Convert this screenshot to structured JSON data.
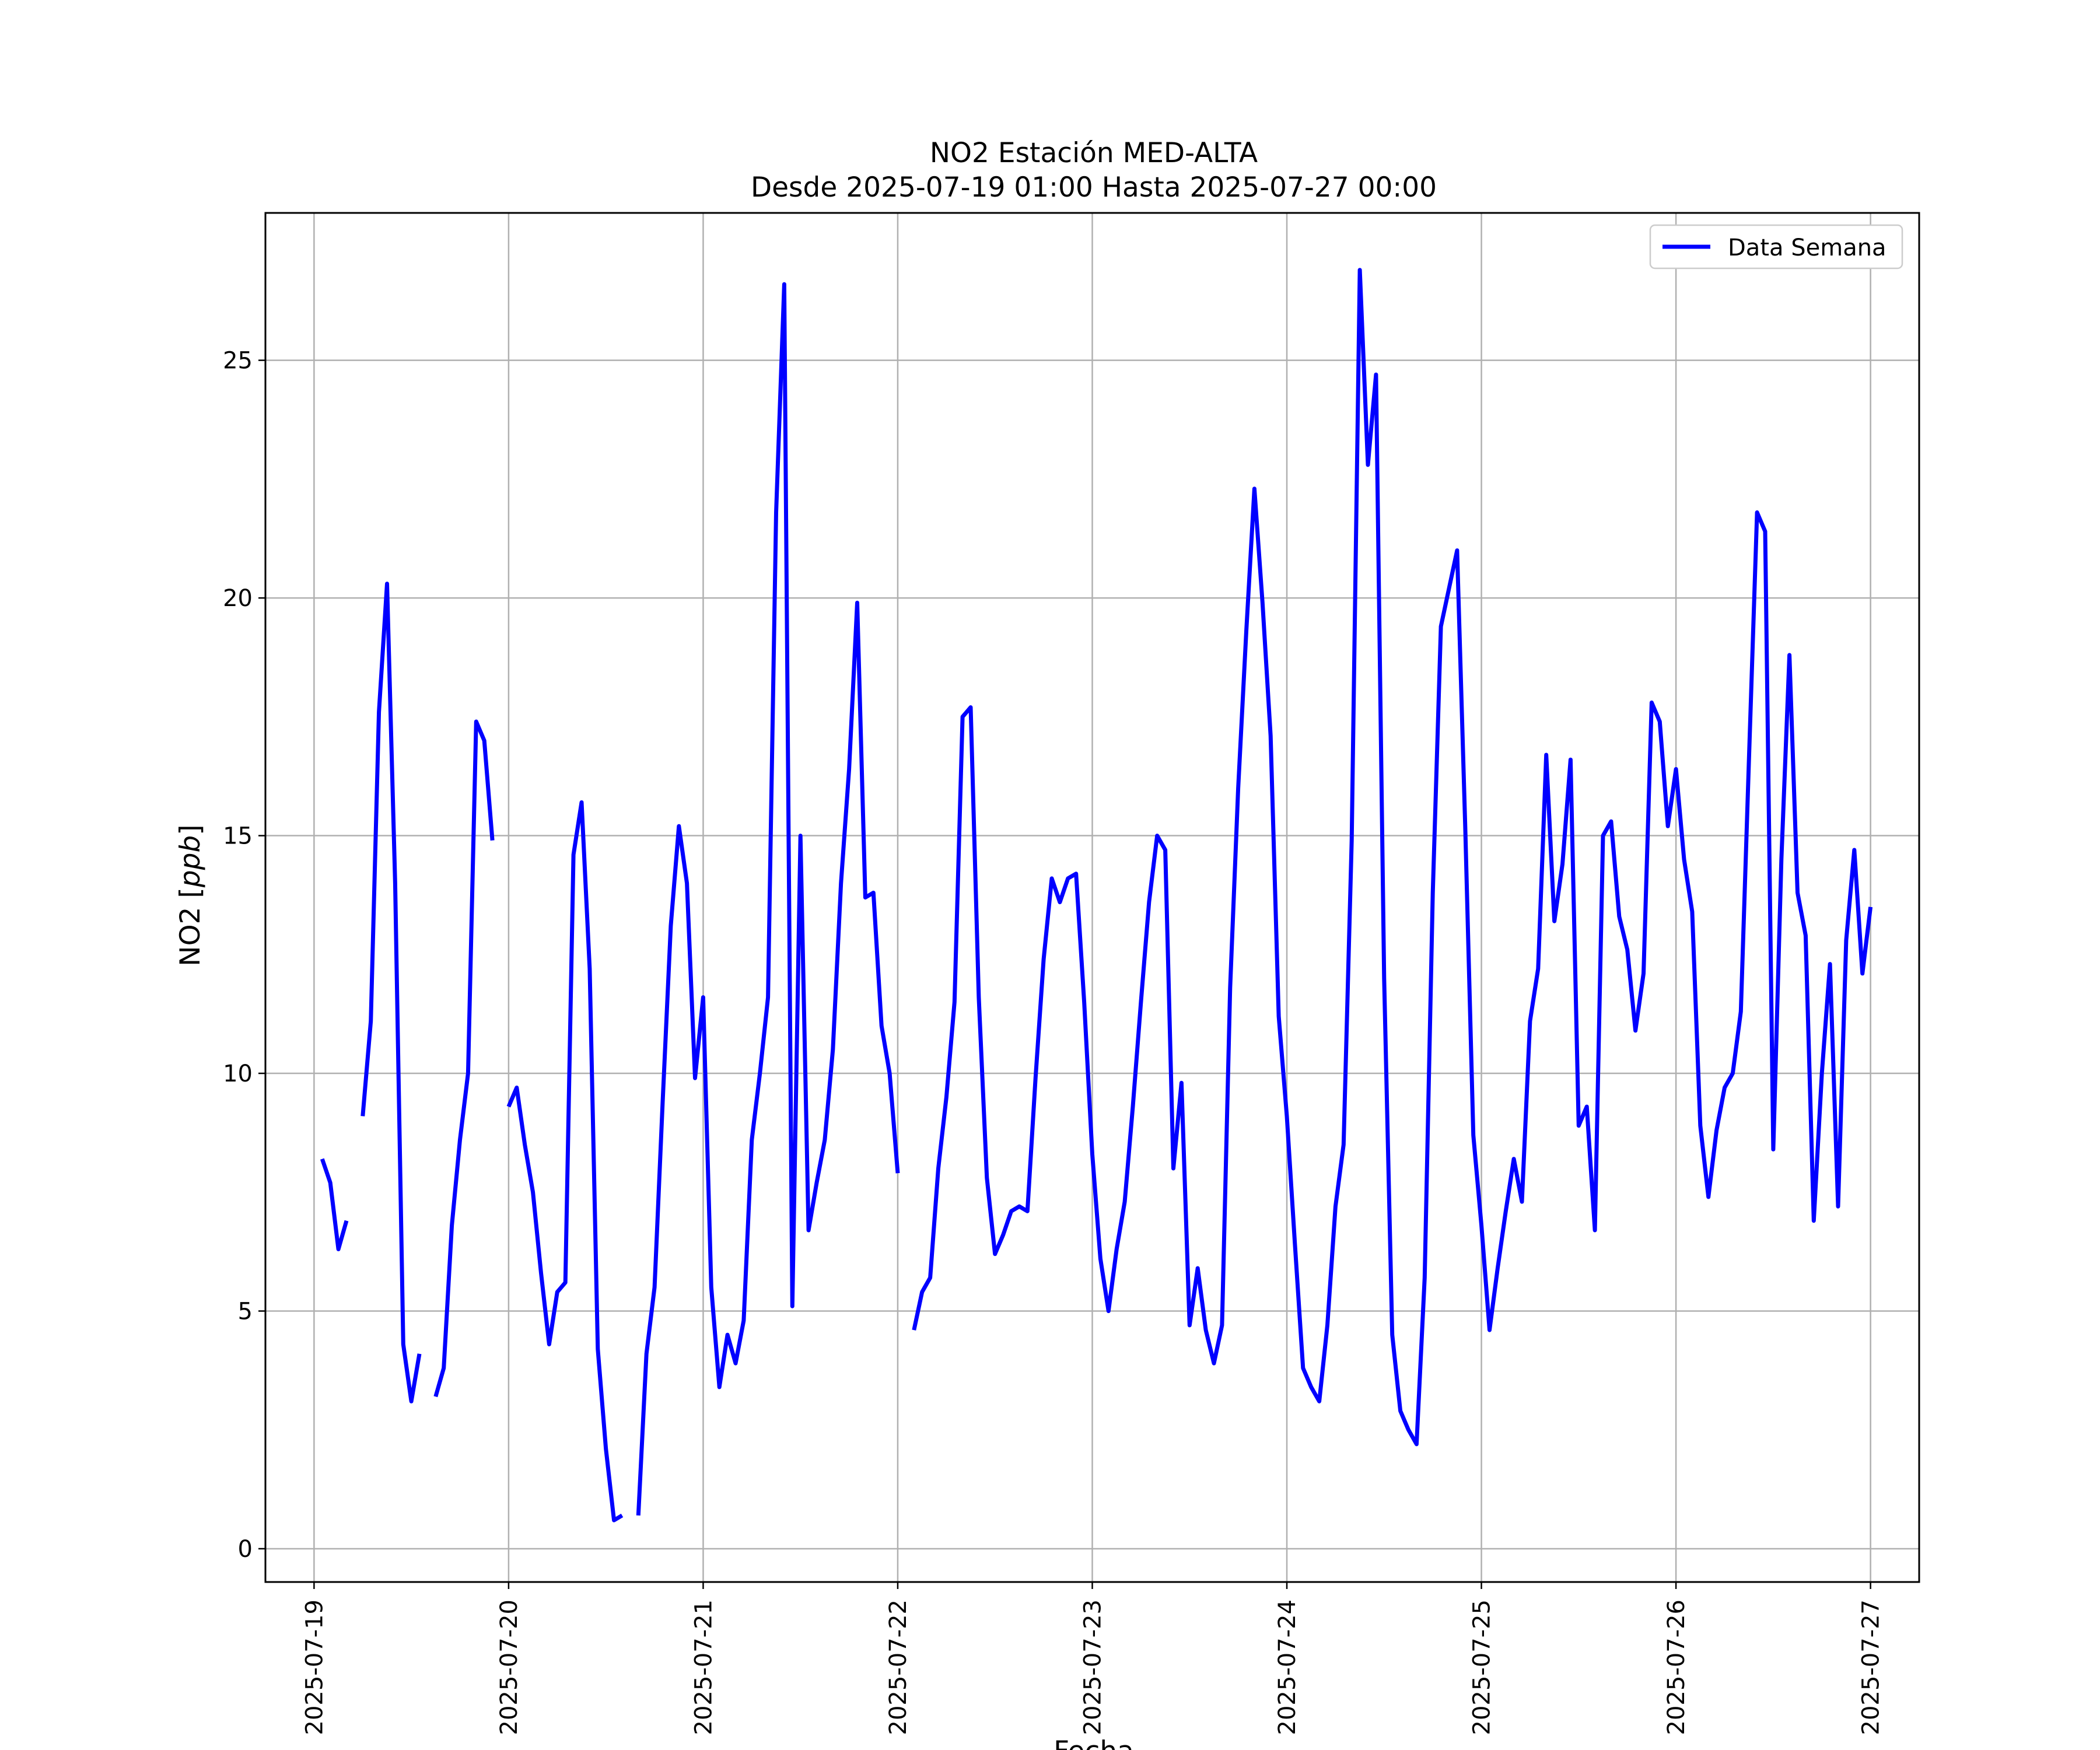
{
  "chart_data": {
    "type": "line",
    "title": "NO2 Estación MED-ALTA",
    "subtitle": "Desde 2025-07-19 01:00 Hasta 2025-07-27 00:00",
    "xlabel": "Fecha",
    "ylabel": "NO2 [ppb]",
    "ylabel_prefix": "NO2 [",
    "ylabel_unit": "ppb",
    "ylabel_suffix": "]",
    "xlim": [
      "2025-07-18 18:00",
      "2025-07-27 06:00"
    ],
    "ylim": [
      -0.7,
      28.1
    ],
    "yticks": [
      0,
      5,
      10,
      15,
      20,
      25
    ],
    "xticks": [
      "2025-07-19",
      "2025-07-20",
      "2025-07-21",
      "2025-07-22",
      "2025-07-23",
      "2025-07-24",
      "2025-07-25",
      "2025-07-26",
      "2025-07-27"
    ],
    "grid": true,
    "legend_position": "top-right",
    "color": "#0000ff",
    "series": [
      {
        "name": "Data Semana",
        "color": "#0000ff",
        "start": "2025-07-19 01:00",
        "interval_hours": 1,
        "values": [
          8.2,
          7.7,
          6.3,
          6.9,
          null,
          9.1,
          11.1,
          17.6,
          20.3,
          14.0,
          4.3,
          3.1,
          4.1,
          null,
          3.2,
          3.8,
          6.8,
          8.6,
          10.0,
          17.4,
          17.0,
          14.9,
          null,
          9.3,
          9.7,
          8.5,
          7.5,
          5.8,
          4.3,
          5.4,
          5.6,
          14.6,
          15.7,
          12.2,
          4.2,
          2.1,
          0.6,
          0.7,
          null,
          0.7,
          4.1,
          5.5,
          9.4,
          13.1,
          15.2,
          14.0,
          9.9,
          11.6,
          5.5,
          3.4,
          4.5,
          3.9,
          4.8,
          8.6,
          10.0,
          11.6,
          21.8,
          26.6,
          5.1,
          15.0,
          6.7,
          7.7,
          8.6,
          10.5,
          14.0,
          16.4,
          19.9,
          13.7,
          13.8,
          11.0,
          10.0,
          7.9,
          null,
          4.6,
          5.4,
          5.7,
          8.0,
          9.5,
          11.5,
          17.5,
          17.7,
          11.6,
          7.8,
          6.2,
          6.6,
          7.1,
          7.2,
          7.1,
          9.9,
          12.4,
          14.1,
          13.6,
          14.1,
          14.2,
          11.5,
          8.3,
          6.1,
          5.0,
          6.3,
          7.3,
          9.3,
          11.5,
          13.6,
          15.0,
          14.7,
          8.0,
          9.8,
          4.7,
          5.9,
          4.6,
          3.9,
          4.7,
          11.8,
          16.0,
          19.3,
          22.3,
          19.9,
          17.1,
          11.2,
          9.1,
          6.4,
          3.8,
          3.4,
          3.1,
          4.7,
          7.2,
          8.5,
          14.9,
          26.9,
          22.8,
          24.7,
          12.0,
          4.5,
          2.9,
          2.5,
          2.2,
          5.7,
          13.8,
          19.4,
          20.2,
          21.0,
          15.2,
          8.7,
          6.8,
          4.6,
          5.9,
          7.1,
          8.2,
          7.3,
          11.1,
          12.2,
          16.7,
          13.2,
          14.4,
          16.6,
          8.9,
          9.3,
          6.7,
          15.0,
          15.3,
          13.3,
          12.6,
          10.9,
          12.1,
          17.8,
          17.4,
          15.2,
          16.4,
          14.5,
          13.4,
          8.9,
          7.4,
          8.8,
          9.7,
          10.0,
          11.3,
          16.6,
          21.8,
          21.4,
          8.4,
          14.5,
          18.8,
          13.8,
          12.9,
          6.9,
          10.0,
          12.3,
          7.2,
          12.8,
          14.7,
          12.1,
          13.5
        ]
      }
    ]
  }
}
